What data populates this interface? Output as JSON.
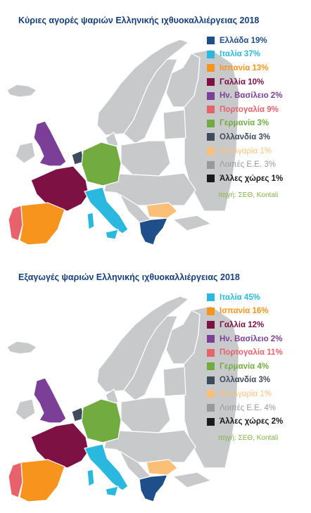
{
  "colors": {
    "land": "#c8c9cb",
    "border": "#ffffff",
    "greece": "#1e4f8a",
    "italy": "#2bb8df",
    "spain": "#f7941d",
    "france": "#7d1144",
    "uk": "#7b3f98",
    "portugal": "#e8626b",
    "germany": "#72ac40",
    "netherlands": "#3d4b5c",
    "bulgaria": "#fbbf77",
    "other_eu": "#97999c",
    "other": "#1a1a1a"
  },
  "panels": [
    {
      "title": "Κύριες αγορές ψαριών Ελληνικής ιχθυοκαλλιέργειας 2018",
      "legend": [
        {
          "label": "Ελλάδα 19%",
          "color": "#1e4f8a",
          "weight": "bold"
        },
        {
          "label": "Ιταλία 37%",
          "color": "#2bb8df",
          "weight": "bold"
        },
        {
          "label": "Ισπανία 13%",
          "color": "#f7941d",
          "weight": "bold"
        },
        {
          "label": "Γαλλία 10%",
          "color": "#7d1144",
          "weight": "bold"
        },
        {
          "label": "Ην. Βασίλειο 2%",
          "color": "#7b3f98",
          "weight": "bold"
        },
        {
          "label": "Πορτογαλία 9%",
          "color": "#e8626b",
          "weight": "bold"
        },
        {
          "label": "Γερμανία 3%",
          "color": "#72ac40",
          "weight": "bold"
        },
        {
          "label": "Ολλανδία 3%",
          "color": "#3d4b5c",
          "weight": "bold"
        },
        {
          "label": "Βουλγαρία 1%",
          "color": "#fbbf77",
          "weight": "normal"
        },
        {
          "label": "Λοιπές Ε.Ε. 3%",
          "color": "#97999c",
          "weight": "normal"
        },
        {
          "label": "Άλλες χώρες 1%",
          "color": "#1a1a1a",
          "weight": "bold"
        }
      ],
      "source": "πηγή: ΣΕΘ, Kontali"
    },
    {
      "title": "Εξαγωγές ψαριών Ελληνικής ιχθυοκαλλιέργειας 2018",
      "legend": [
        {
          "label": "Ιταλία 45%",
          "color": "#2bb8df",
          "weight": "bold"
        },
        {
          "label": "Ισπανία 16%",
          "color": "#f7941d",
          "weight": "bold"
        },
        {
          "label": "Γαλλία 12%",
          "color": "#7d1144",
          "weight": "bold"
        },
        {
          "label": "Ην. Βασίλειο 2%",
          "color": "#7b3f98",
          "weight": "bold"
        },
        {
          "label": "Πορτογαλία 11%",
          "color": "#e8626b",
          "weight": "bold"
        },
        {
          "label": "Γερμανία 4%",
          "color": "#72ac40",
          "weight": "bold"
        },
        {
          "label": "Ολλανδία 3%",
          "color": "#3d4b5c",
          "weight": "bold"
        },
        {
          "label": "Βουλγαρία 1%",
          "color": "#fbbf77",
          "weight": "normal"
        },
        {
          "label": "Λοιπές Ε.Ε. 4%",
          "color": "#97999c",
          "weight": "normal"
        },
        {
          "label": "Άλλες χώρες 2%",
          "color": "#1a1a1a",
          "weight": "bold"
        }
      ],
      "source": "πηγή: ΣΕΘ, Kontali"
    }
  ]
}
